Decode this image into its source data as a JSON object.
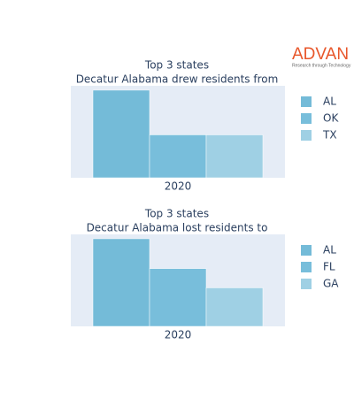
{
  "logo": {
    "name": "ADVAN",
    "tagline": "Research through Technology"
  },
  "chart_data": [
    {
      "type": "bar",
      "title": "Top 3 states",
      "subtitle": "Decatur Alabama drew residents from",
      "categories": [
        "2020"
      ],
      "ylim": [
        0,
        105
      ],
      "legend": "right",
      "series": [
        {
          "name": "AL",
          "color": "#74bbd8",
          "values": [
            100
          ]
        },
        {
          "name": "OK",
          "color": "#78bedb",
          "values": [
            49
          ]
        },
        {
          "name": "TX",
          "color": "#9fd0e4",
          "values": [
            49
          ]
        }
      ]
    },
    {
      "type": "bar",
      "title": "Top 3 states",
      "subtitle": "Decatur Alabama lost residents to",
      "categories": [
        "2020"
      ],
      "ylim": [
        0,
        105
      ],
      "legend": "right",
      "series": [
        {
          "name": "AL",
          "color": "#74bbd8",
          "values": [
            100
          ]
        },
        {
          "name": "FL",
          "color": "#78bedb",
          "values": [
            66
          ]
        },
        {
          "name": "GA",
          "color": "#9fd0e4",
          "values": [
            44
          ]
        }
      ]
    }
  ]
}
